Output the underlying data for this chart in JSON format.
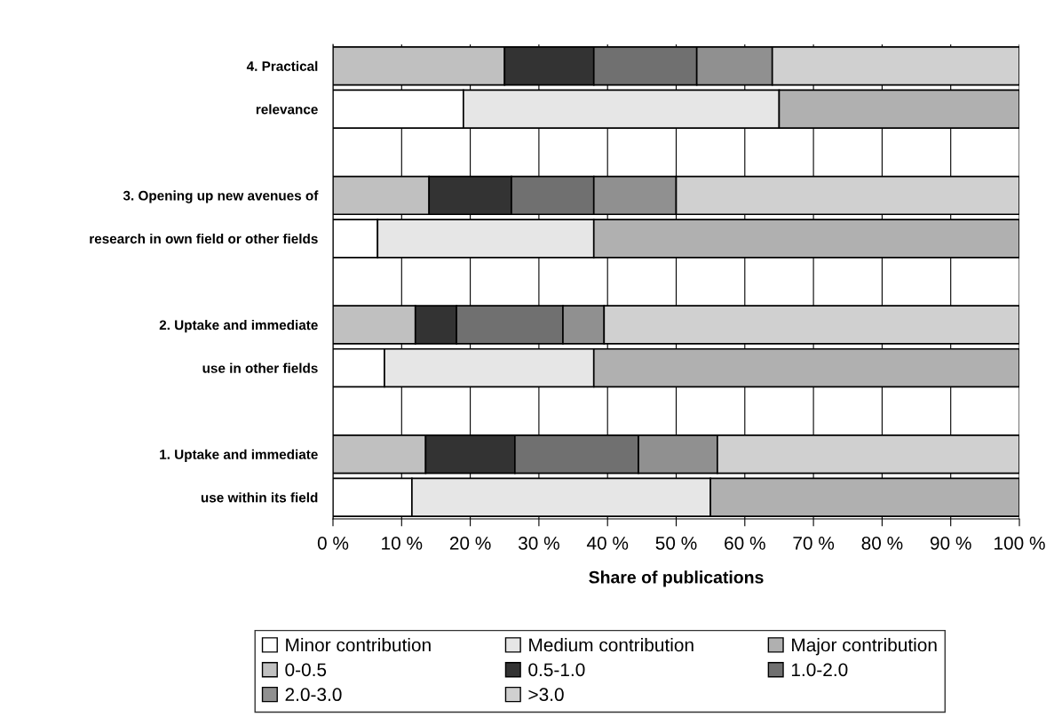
{
  "chart_data": {
    "type": "bar",
    "orientation": "horizontal",
    "stacked": true,
    "xlabel": "Share of publications",
    "categories": [
      "4. Practical",
      "relevance",
      null,
      "3. Opening up new avenues of",
      "research in own field or other fields",
      null,
      "2. Uptake and immediate",
      "use in other fields",
      null,
      "1. Uptake and immediate",
      "use within its field"
    ],
    "series": [
      {
        "name": "Minor contribution",
        "color": "#ffffff",
        "values": [
          null,
          19,
          null,
          null,
          6.5,
          null,
          null,
          7.5,
          null,
          null,
          11.5
        ]
      },
      {
        "name": "Medium contribution",
        "color": "#e6e6e6",
        "values": [
          null,
          46,
          null,
          null,
          31.5,
          null,
          null,
          30.5,
          null,
          null,
          43.5
        ]
      },
      {
        "name": "Major contribution",
        "color": "#b0b0b0",
        "values": [
          null,
          35,
          null,
          null,
          62,
          null,
          null,
          62,
          null,
          null,
          45
        ]
      },
      {
        "name": "0-0.5",
        "color": "#c0c0c0",
        "values": [
          25,
          null,
          null,
          14,
          null,
          null,
          12,
          null,
          null,
          13.5,
          null
        ]
      },
      {
        "name": "0.5-1.0",
        "color": "#333333",
        "values": [
          13,
          null,
          null,
          12,
          null,
          null,
          6,
          null,
          null,
          13,
          null
        ]
      },
      {
        "name": "1.0-2.0",
        "color": "#707070",
        "values": [
          15,
          null,
          null,
          12,
          null,
          null,
          15.5,
          null,
          null,
          18,
          null
        ]
      },
      {
        "name": "2.0-3.0",
        "color": "#909090",
        "values": [
          11,
          null,
          null,
          12,
          null,
          null,
          6,
          null,
          null,
          11.5,
          null
        ]
      },
      {
        "name": ">3.0",
        "color": "#d0d0d0",
        "values": [
          36,
          null,
          null,
          50,
          null,
          null,
          60.5,
          null,
          null,
          44,
          null
        ]
      }
    ],
    "xlim": [
      0,
      100
    ],
    "xticks": [
      {
        "value": 0,
        "label": "0 %"
      },
      {
        "value": 10,
        "label": "10 %"
      },
      {
        "value": 20,
        "label": "20 %"
      },
      {
        "value": 30,
        "label": "30 %"
      },
      {
        "value": 40,
        "label": "40 %"
      },
      {
        "value": 50,
        "label": "50 %"
      },
      {
        "value": 60,
        "label": "60 %"
      },
      {
        "value": 70,
        "label": "70 %"
      },
      {
        "value": 80,
        "label": "80 %"
      },
      {
        "value": 90,
        "label": "90 %"
      },
      {
        "value": 100,
        "label": "100 %"
      }
    ],
    "grid": "x",
    "legend": "bottom"
  }
}
